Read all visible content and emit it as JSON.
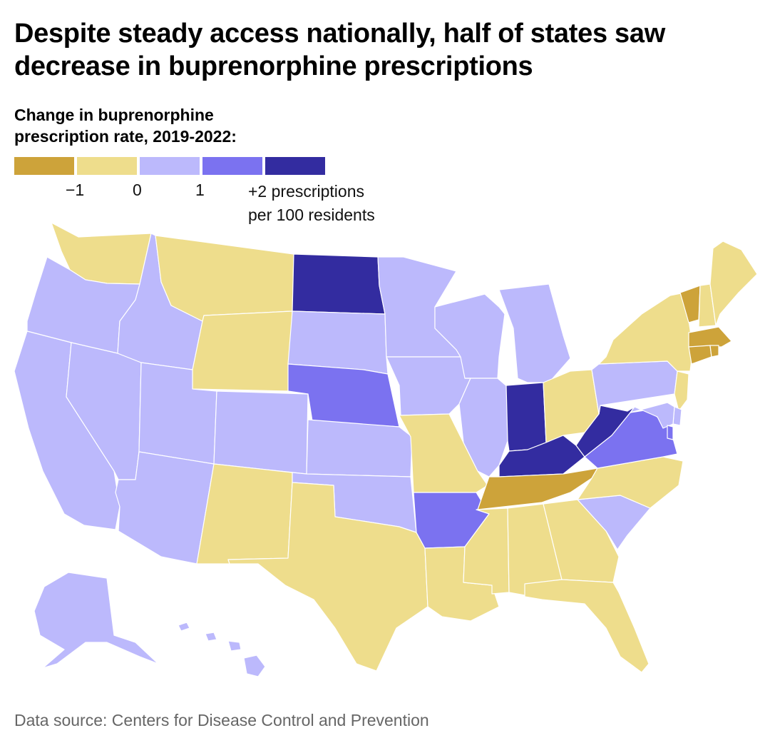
{
  "title_lines": [
    "Despite steady access nationally, half of states saw",
    "decrease in buprenorphine prescriptions"
  ],
  "legend": {
    "title_lines": [
      "Change in buprenorphine",
      "prescription rate, 2019-2022:"
    ],
    "colors": [
      "#cda33a",
      "#eedd8c",
      "#bcb9fc",
      "#7b72f0",
      "#332ca0"
    ],
    "ticks": [
      "−1",
      "0",
      "1"
    ],
    "last_tick_lines": [
      "+2 prescriptions",
      "per 100 residents"
    ]
  },
  "map_data": {
    "type": "choropleth",
    "region": "United States",
    "bins": [
      {
        "range": "below -1",
        "color": "#cda33a",
        "states": [
          "TN",
          "VT",
          "MA",
          "CT",
          "RI"
        ]
      },
      {
        "range": "-1 to 0",
        "color": "#eedd8c",
        "states": [
          "WA",
          "MT",
          "WY",
          "NM",
          "TX",
          "MO",
          "OH",
          "NY",
          "NH",
          "ME",
          "NJ",
          "NC",
          "GA",
          "AL",
          "MS",
          "LA",
          "FL"
        ]
      },
      {
        "range": "0 to 1",
        "color": "#bcb9fc",
        "states": [
          "OR",
          "CA",
          "NV",
          "ID",
          "UT",
          "AZ",
          "CO",
          "SD",
          "KS",
          "OK",
          "MN",
          "IA",
          "WI",
          "IL",
          "MI",
          "PA",
          "SC",
          "MD",
          "DE",
          "AK",
          "HI"
        ]
      },
      {
        "range": "1 to 2",
        "color": "#7b72f0",
        "states": [
          "NE",
          "AR",
          "VA",
          "DC"
        ]
      },
      {
        "range": "above 2",
        "color": "#332ca0",
        "states": [
          "ND",
          "IN",
          "KY",
          "WV"
        ]
      }
    ]
  },
  "source": "Data source: Centers for Disease Control and Prevention"
}
